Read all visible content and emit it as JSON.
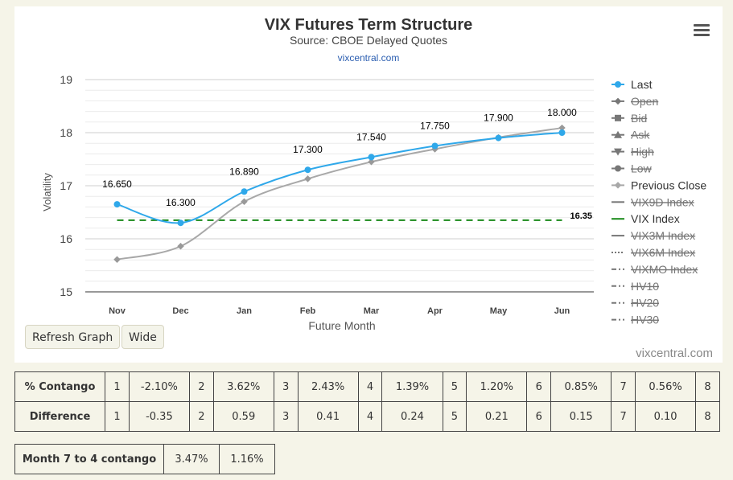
{
  "header": {
    "title": "VIX Futures Term Structure",
    "subtitle": "Source: CBOE Delayed Quotes",
    "link": "vixcentral.com",
    "menu_icon": "hamburger-icon"
  },
  "buttons": {
    "refresh": "Refresh Graph",
    "wide": "Wide"
  },
  "watermark": "vixcentral.com",
  "chart_data": {
    "type": "line",
    "categories": [
      "Nov",
      "Dec",
      "Jan",
      "Feb",
      "Mar",
      "Apr",
      "May",
      "Jun"
    ],
    "xlabel": "Future Month",
    "ylabel": "Volatility",
    "ylim": [
      15,
      19
    ],
    "yticks": [
      15,
      16,
      17,
      18,
      19
    ],
    "grid": true,
    "legend_position": "right",
    "series": [
      {
        "name": "Last",
        "values": [
          16.65,
          16.3,
          16.89,
          17.3,
          17.54,
          17.75,
          17.9,
          18.0
        ],
        "labels": [
          "16.650",
          "16.300",
          "16.890",
          "17.300",
          "17.540",
          "17.750",
          "17.900",
          "18.000"
        ],
        "color": "#2fa8ea"
      },
      {
        "name": "Previous Close",
        "values": [
          15.61,
          15.86,
          16.7,
          17.13,
          17.45,
          17.69,
          17.91,
          18.09
        ],
        "color": "#a8a8a8"
      },
      {
        "name": "VIX Index",
        "value": 16.35,
        "label": "16.35",
        "color": "#1a8a1a"
      }
    ],
    "legend": [
      {
        "name": "Last",
        "symbol": "circle",
        "hidden": false
      },
      {
        "name": "Open",
        "symbol": "diamond",
        "hidden": true
      },
      {
        "name": "Bid",
        "symbol": "square",
        "hidden": true
      },
      {
        "name": "Ask",
        "symbol": "triangle",
        "hidden": true
      },
      {
        "name": "High",
        "symbol": "triangle-down",
        "hidden": true
      },
      {
        "name": "Low",
        "symbol": "circle",
        "hidden": true
      },
      {
        "name": "Previous Close",
        "symbol": "diamond",
        "hidden": false
      },
      {
        "name": "VIX9D Index",
        "symbol": "solid",
        "hidden": true
      },
      {
        "name": "VIX Index",
        "symbol": "solid",
        "hidden": false
      },
      {
        "name": "VIX3M Index",
        "symbol": "solid",
        "hidden": true
      },
      {
        "name": "VIX6M Index",
        "symbol": "dotted",
        "hidden": true
      },
      {
        "name": "VIXMO Index",
        "symbol": "dashdot",
        "hidden": true
      },
      {
        "name": "HV10",
        "symbol": "dashdot",
        "hidden": true
      },
      {
        "name": "HV20",
        "symbol": "dashdot",
        "hidden": true
      },
      {
        "name": "HV30",
        "symbol": "dashdot",
        "hidden": true
      }
    ]
  },
  "contango_table": {
    "rows": [
      {
        "label": "% Contango",
        "cells": [
          "1",
          "-2.10%",
          "2",
          "3.62%",
          "3",
          "2.43%",
          "4",
          "1.39%",
          "5",
          "1.20%",
          "6",
          "0.85%",
          "7",
          "0.56%",
          "8"
        ]
      },
      {
        "label": "Difference",
        "cells": [
          "1",
          "-0.35",
          "2",
          "0.59",
          "3",
          "0.41",
          "4",
          "0.24",
          "5",
          "0.21",
          "6",
          "0.15",
          "7",
          "0.10",
          "8"
        ]
      }
    ]
  },
  "month_table": {
    "label": "Month 7 to 4 contango",
    "values": [
      "3.47%",
      "1.16%"
    ]
  }
}
